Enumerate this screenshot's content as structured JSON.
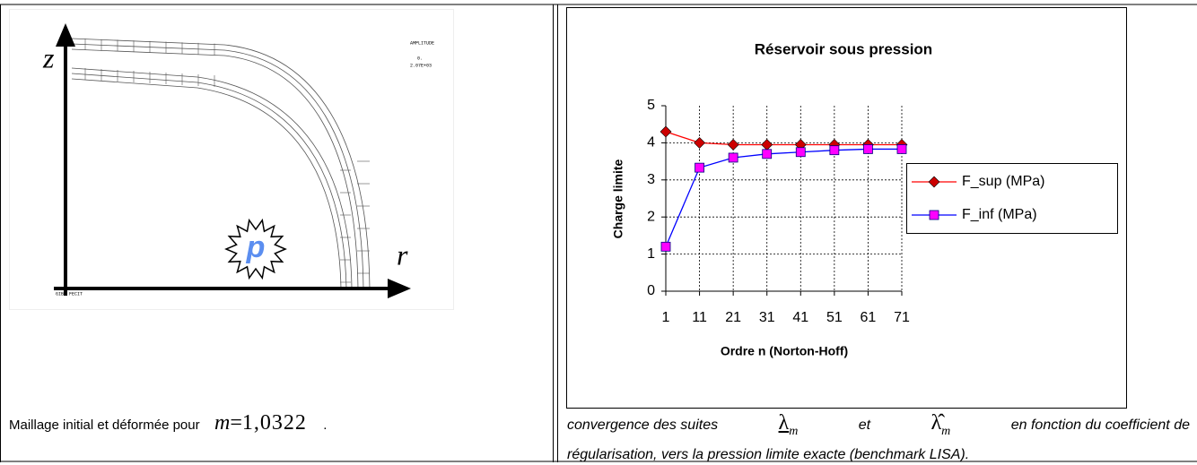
{
  "left": {
    "axis_z": "z",
    "axis_r": "r",
    "pressure": "p",
    "mesh_title": "AMPLITUDE",
    "mesh_values": [
      "0.",
      "2.07E+03"
    ],
    "mesh_footer": "GIBI FECIT",
    "caption": "Maillage initial et déformée pour",
    "caption_math_var": "m",
    "caption_math_eq": "=",
    "caption_math_value": "1,0322",
    "caption_end": "."
  },
  "chart_data": {
    "type": "line",
    "title": "Réservoir sous pression",
    "x_label": "Ordre n (Norton-Hoff)",
    "y_label": "Charge limite",
    "categories": [
      "1",
      "11",
      "21",
      "31",
      "41",
      "51",
      "61",
      "71"
    ],
    "series": [
      {
        "name": "F_sup (MPa)",
        "color": "#ff0000",
        "marker": "diamond",
        "marker_color": "#cc0000",
        "values": [
          4.3,
          4.0,
          3.95,
          3.95,
          3.95,
          3.95,
          3.95,
          3.95
        ]
      },
      {
        "name": "F_inf (MPa)",
        "color": "#0000ff",
        "marker": "square",
        "marker_color": "#ff00ff",
        "values": [
          1.2,
          3.33,
          3.6,
          3.7,
          3.75,
          3.8,
          3.83,
          3.83
        ]
      }
    ],
    "ylim": [
      0,
      5
    ],
    "yticks": [
      0,
      1,
      2,
      3,
      4,
      5
    ],
    "grid": true,
    "legend": "right"
  },
  "right": {
    "caption_start": "convergence des suites",
    "lambda": "λ",
    "lambda_sub": "m",
    "and": "et",
    "lambda_hat": "λ̂",
    "lambda_hat_sub": "m",
    "caption_line1_end": "en fonction du coefficient de",
    "caption_line2": "régularisation, vers la pression limite exacte (benchmark LISA)."
  }
}
